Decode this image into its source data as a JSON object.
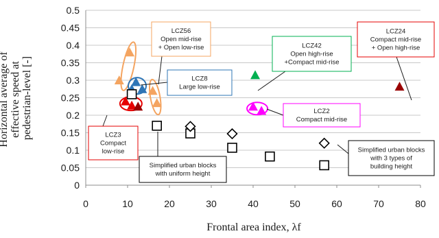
{
  "chart_data": {
    "type": "scatter",
    "xlabel": "Frontal area index, λf",
    "ylabel_lines": [
      "Horizontal average of",
      "effective speed at",
      "pedestrian-level  [-]"
    ],
    "xlim": [
      0,
      80
    ],
    "ylim": [
      0,
      0.5
    ],
    "xticks": [
      "0",
      "10",
      "20",
      "30",
      "40",
      "50",
      "60",
      "70",
      "80"
    ],
    "yticks": [
      "0",
      "0.05",
      "0.1",
      "0.15",
      "0.2",
      "0.25",
      "0.3",
      "0.35",
      "0.4",
      "0.45",
      "0.5"
    ],
    "grid": "horizontal",
    "series": [
      {
        "marker": "triangle",
        "color": "#f4a460",
        "points": [
          [
            10.5,
            0.38
          ],
          [
            8,
            0.3
          ],
          [
            16,
            0.27
          ],
          [
            17,
            0.235
          ]
        ]
      },
      {
        "marker": "triangle",
        "color": "#2e75b6",
        "points": [
          [
            12,
            0.295
          ],
          [
            11,
            0.275
          ],
          [
            13.5,
            0.275
          ]
        ]
      },
      {
        "marker": "triangle",
        "color": "#e60000",
        "points": [
          [
            9.5,
            0.24
          ],
          [
            11,
            0.228
          ]
        ]
      },
      {
        "marker": "triangle",
        "color": "#990000",
        "points": [
          [
            12.5,
            0.225
          ],
          [
            75,
            0.282
          ]
        ]
      },
      {
        "marker": "triangle",
        "color": "#00b050",
        "points": [
          [
            40.5,
            0.315
          ]
        ]
      },
      {
        "marker": "triangle",
        "color": "#ff00ff",
        "points": [
          [
            40,
            0.225
          ],
          [
            42,
            0.213
          ]
        ]
      },
      {
        "marker": "square",
        "color": "#000000",
        "points": [
          [
            11,
            0.26
          ],
          [
            17,
            0.17
          ],
          [
            25,
            0.148
          ],
          [
            35,
            0.107
          ],
          [
            44,
            0.082
          ],
          [
            57,
            0.057
          ]
        ]
      },
      {
        "marker": "diamond",
        "color": "#000000",
        "points": [
          [
            25,
            0.168
          ],
          [
            35,
            0.147
          ],
          [
            57,
            0.12
          ]
        ]
      }
    ],
    "annotations": [
      {
        "lines": [
          "LCZ56",
          "Open mid-rise",
          "+ Open low-rise"
        ],
        "color": "#f4a460"
      },
      {
        "lines": [
          "LCZ8",
          "Large low-rise"
        ],
        "color": "#2e75b6"
      },
      {
        "lines": [
          "LCZ42",
          "Open high-rise",
          "+Compact mid-rise"
        ],
        "color": "#00b050"
      },
      {
        "lines": [
          "LCZ24",
          "Compact mid-rise",
          "+ Open high-rise"
        ],
        "color": "#e60000"
      },
      {
        "lines": [
          "LCZ2",
          "Compact mid-rise"
        ],
        "color": "#ff00ff"
      },
      {
        "lines": [
          "LCZ3",
          "Compact",
          "low-rise"
        ],
        "color": "#e60000"
      },
      {
        "lines": [
          "Simplified urban blocks",
          "with uniform height"
        ],
        "color": "#000000"
      },
      {
        "lines": [
          "Simplified urban blocks",
          "with 3 types of",
          "building height"
        ],
        "color": "#000000"
      }
    ],
    "highlight_ellipses": [
      {
        "color": "#f4a460"
      },
      {
        "color": "#f4a460"
      },
      {
        "color": "#2e75b6"
      },
      {
        "color": "#e60000"
      },
      {
        "color": "#ff00ff"
      }
    ]
  }
}
